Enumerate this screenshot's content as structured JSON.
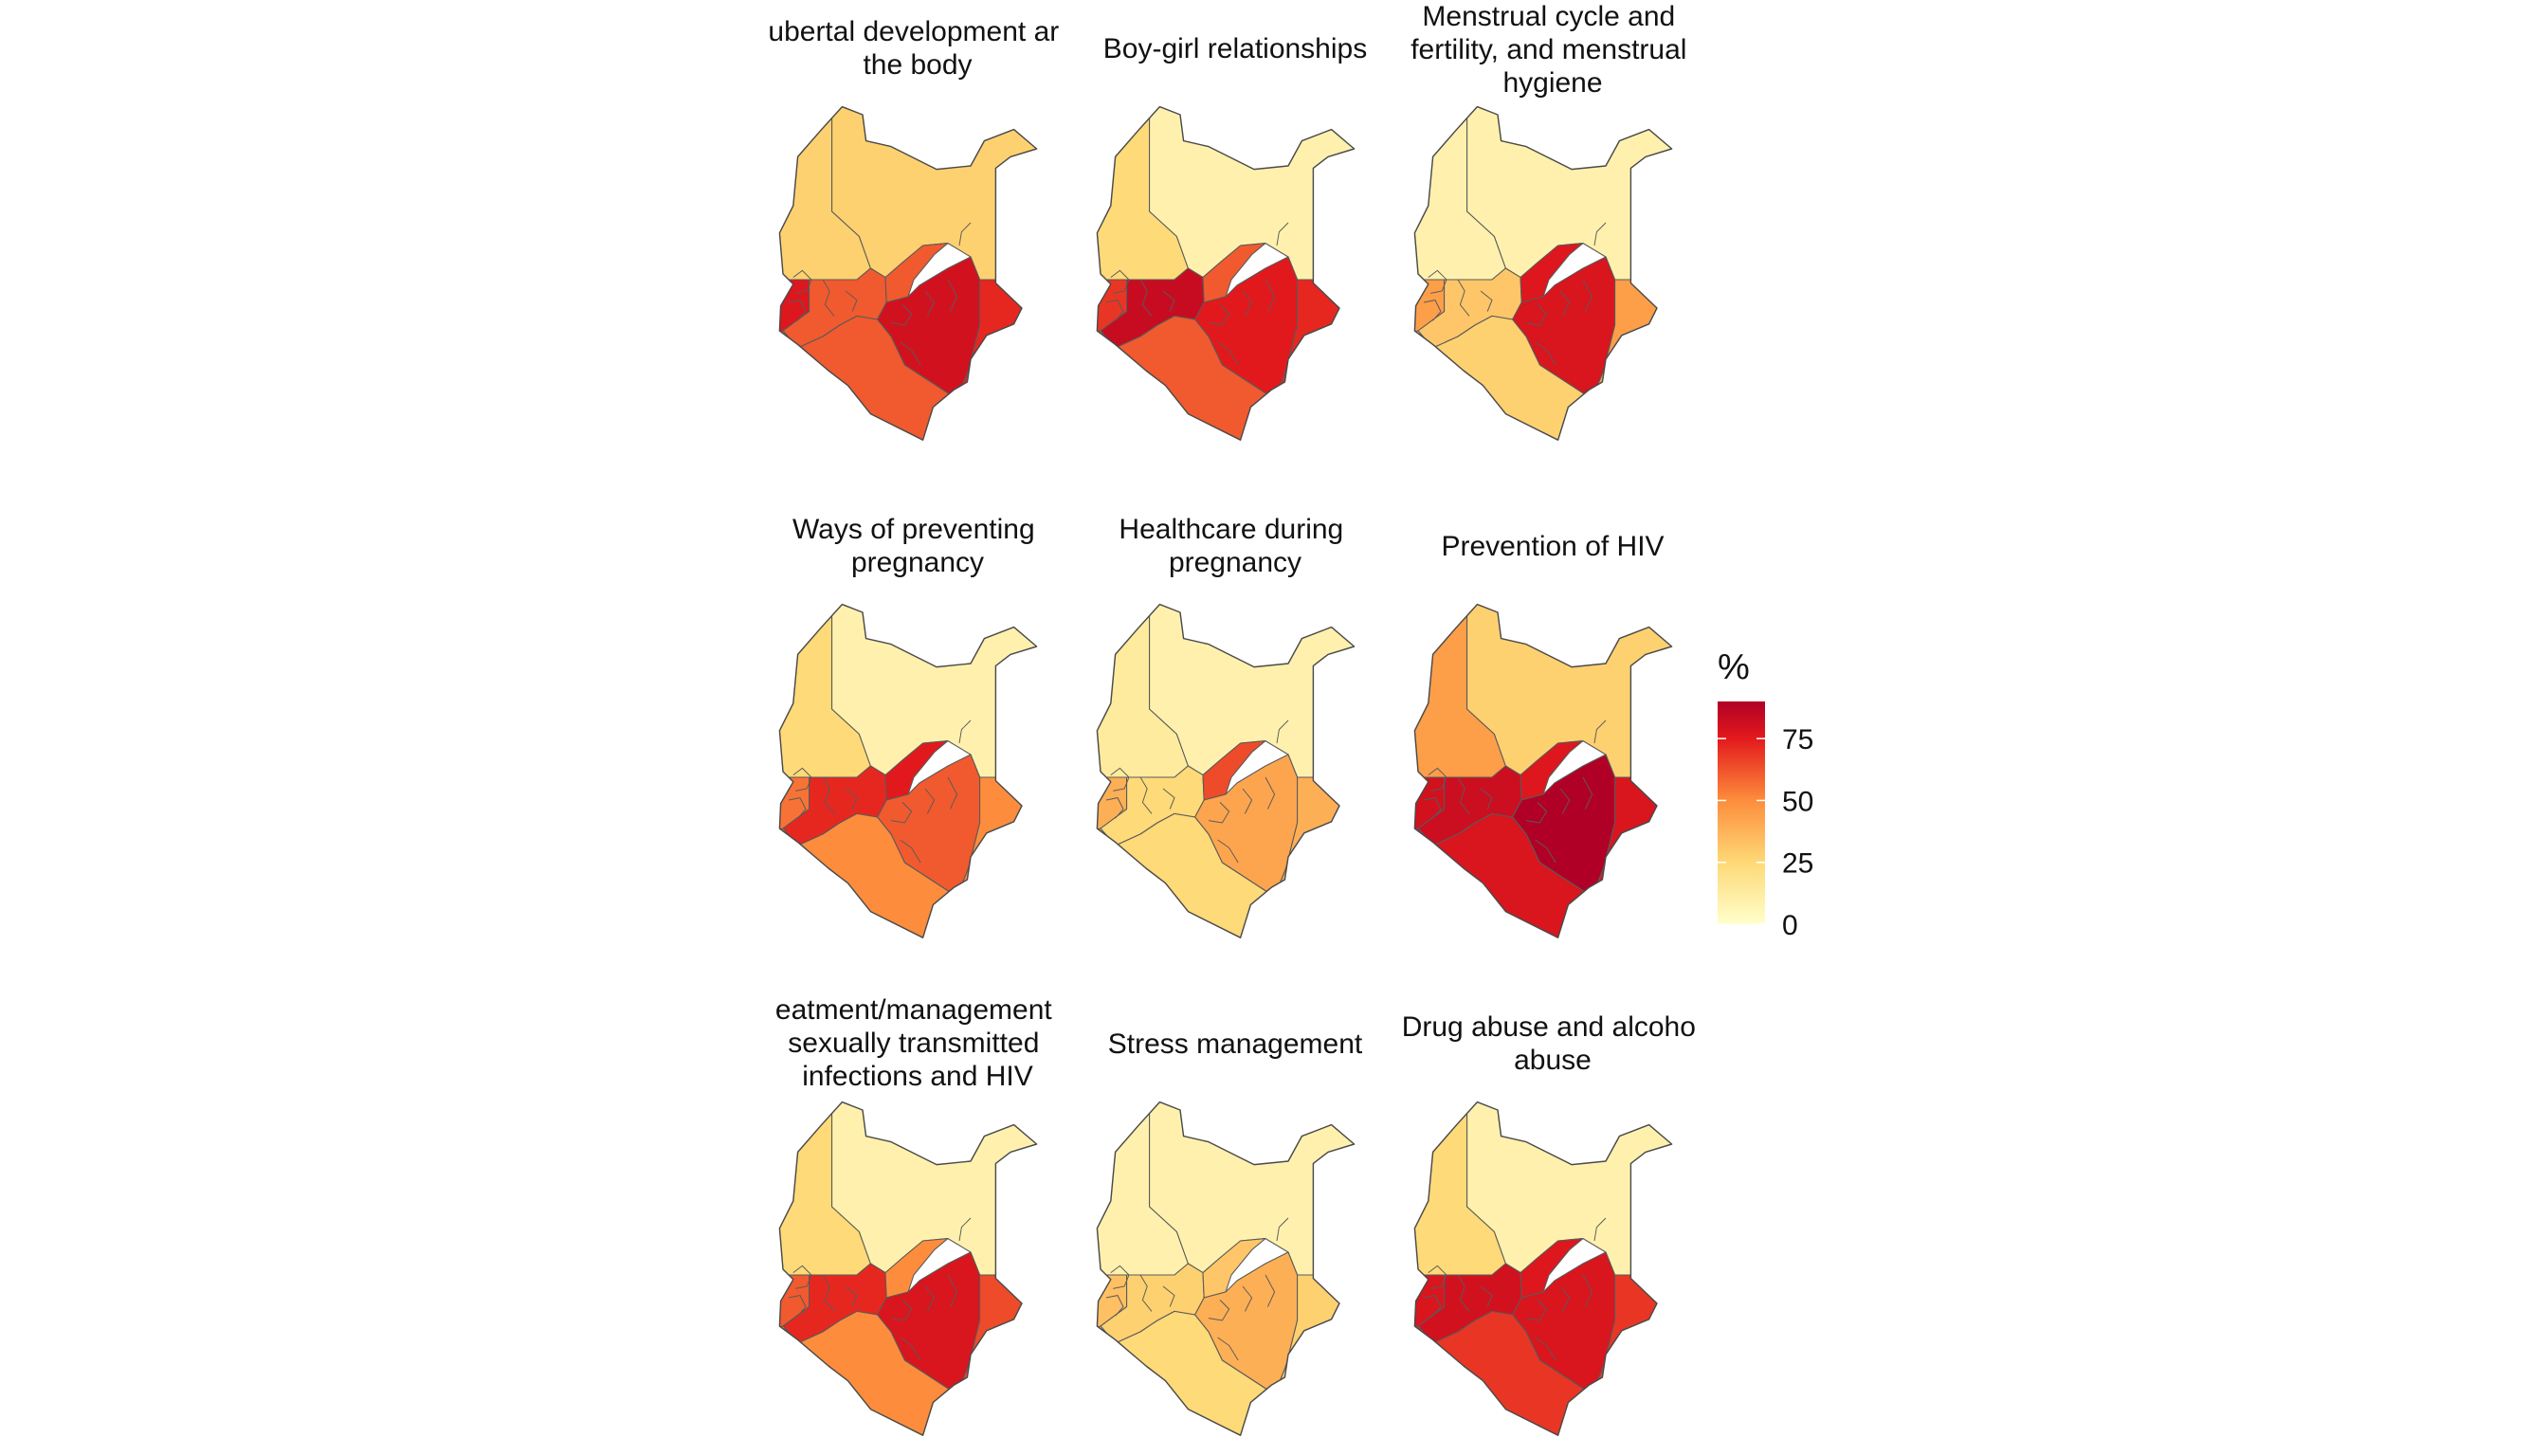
{
  "figure": {
    "legend": {
      "title": "%",
      "ticks": [
        0,
        25,
        50,
        75
      ],
      "range": [
        0,
        90
      ],
      "colors": [
        "#ffffcc",
        "#fed976",
        "#fd8d3c",
        "#e31a1c",
        "#b10026"
      ]
    },
    "panels": [
      {
        "title_lines": [
          "ubertal development ar",
          "the body"
        ],
        "regions": {
          "north_west": 25,
          "north_east": 25,
          "west": 70,
          "west_central": 55,
          "rift": 55,
          "central_north": 55,
          "central": 75,
          "coast": 65
        }
      },
      {
        "title_lines": [
          "Boy-girl relationships"
        ],
        "regions": {
          "north_west": 22,
          "north_east": 8,
          "west": 62,
          "west_central": 80,
          "rift": 55,
          "central_north": 55,
          "central": 68,
          "coast": 65
        }
      },
      {
        "title_lines": [
          "Menstrual cycle and",
          "fertility, and menstrual",
          "hygiene"
        ],
        "regions": {
          "north_west": 8,
          "north_east": 8,
          "west": 40,
          "west_central": 28,
          "rift": 25,
          "central_north": 70,
          "central": 72,
          "coast": 40
        }
      },
      {
        "title_lines": [
          "Ways of preventing",
          "pregnancy"
        ],
        "regions": {
          "north_west": 22,
          "north_east": 8,
          "west": 50,
          "west_central": 65,
          "rift": 45,
          "central_north": 68,
          "central": 55,
          "coast": 45
        }
      },
      {
        "title_lines": [
          "Healthcare during",
          "pregnancy"
        ],
        "regions": {
          "north_west": 12,
          "north_east": 8,
          "west": 35,
          "west_central": 22,
          "rift": 22,
          "central_north": 58,
          "central": 38,
          "coast": 35
        }
      },
      {
        "title_lines": [
          "Prevention of HIV"
        ],
        "regions": {
          "north_west": 40,
          "north_east": 25,
          "west": 75,
          "west_central": 78,
          "rift": 72,
          "central_north": 70,
          "central": 92,
          "coast": 72
        }
      },
      {
        "title_lines": [
          "eatment/management",
          "sexually transmitted",
          "infections and HIV"
        ],
        "regions": {
          "north_west": 22,
          "north_east": 8,
          "west": 55,
          "west_central": 65,
          "rift": 45,
          "central_north": 45,
          "central": 72,
          "coast": 58
        }
      },
      {
        "title_lines": [
          "Stress management"
        ],
        "regions": {
          "north_west": 8,
          "north_east": 8,
          "west": 30,
          "west_central": 25,
          "rift": 22,
          "central_north": 28,
          "central": 35,
          "coast": 25
        }
      },
      {
        "title_lines": [
          "Drug abuse and alcoho",
          "abuse"
        ],
        "regions": {
          "north_west": 22,
          "north_east": 8,
          "west": 72,
          "west_central": 75,
          "rift": 62,
          "central_north": 70,
          "central": 72,
          "coast": 62
        }
      }
    ]
  }
}
